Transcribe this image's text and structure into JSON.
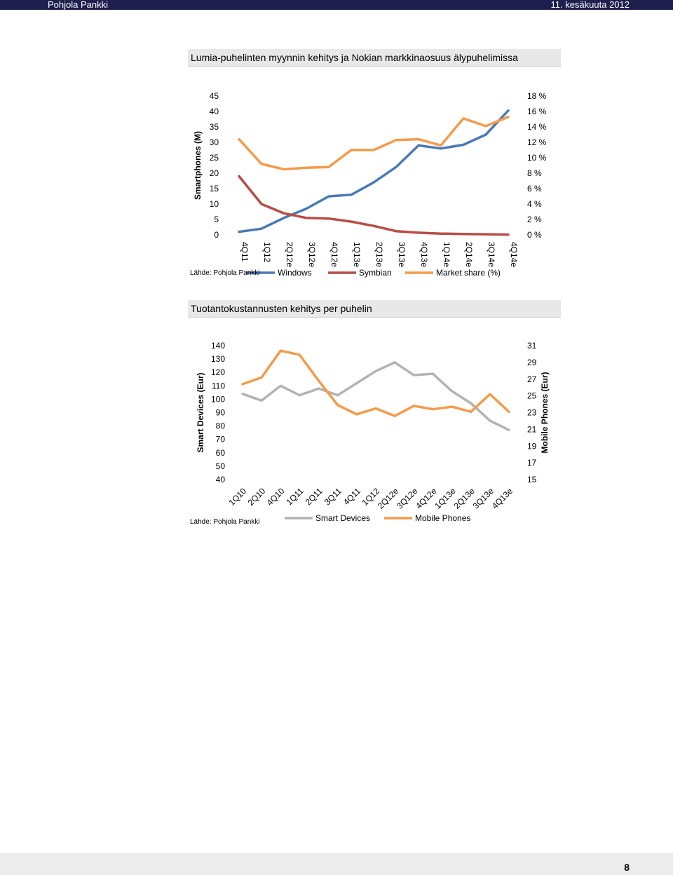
{
  "header": {
    "left": "Pohjola Pankki",
    "right": "11. kesäkuuta 2012"
  },
  "chart1": {
    "title": "Lumia-puhelinten myynnin kehitys ja Nokian markkinaosuus älypuhelimissa",
    "source": "Lähde: Pohjola Pankki"
  },
  "chart2": {
    "title": "Tuotantokustannusten kehitys per puhelin",
    "source": "Lähde: Pohjola Pankki"
  },
  "page_number": "8",
  "colors": {
    "windows": "#4a7ab5",
    "symbian": "#b84c47",
    "market": "#f39c4b",
    "smart": "#b3b3b3",
    "mobile": "#f39c4b"
  },
  "chart_data": [
    {
      "type": "line",
      "title": "Lumia-puhelinten myynnin kehitys ja Nokian markkinaosuus älypuhelimissa",
      "ylabel": "Smartphones (M)",
      "ylabel_right": "",
      "categories": [
        "4Q11",
        "1Q12",
        "2Q12e",
        "3Q12e",
        "4Q12e",
        "1Q13e",
        "2Q13e",
        "3Q13e",
        "4Q13e",
        "1Q14e",
        "2Q14e",
        "3Q14e",
        "4Q14e"
      ],
      "ylim": [
        0,
        45
      ],
      "yticks": [
        "0",
        "5",
        "10",
        "15",
        "20",
        "25",
        "30",
        "35",
        "40",
        "45"
      ],
      "y2lim": [
        0,
        18
      ],
      "y2ticks": [
        "0 %",
        "2 %",
        "4 %",
        "6 %",
        "8 %",
        "10 %",
        "12 %",
        "14 %",
        "16 %",
        "18 %"
      ],
      "series": [
        {
          "name": "Windows",
          "axis": "left",
          "values": [
            1,
            2,
            5.5,
            8.5,
            12.5,
            13,
            17,
            22,
            29,
            28,
            29.2,
            32.5,
            40.3
          ]
        },
        {
          "name": "Symbian",
          "axis": "left",
          "values": [
            19,
            10,
            7,
            5.5,
            5.3,
            4.3,
            2.9,
            1.2,
            0.7,
            0.4,
            0.3,
            0.2,
            0.1
          ]
        },
        {
          "name": "Market share (%)",
          "axis": "right",
          "values": [
            12.4,
            9.2,
            8.5,
            8.7,
            8.8,
            11,
            11,
            12.3,
            12.4,
            11.6,
            15.1,
            14.1,
            15.3
          ]
        }
      ],
      "legend": "bottom"
    },
    {
      "type": "line",
      "title": "Tuotantokustannusten kehitys per puhelin",
      "ylabel": "Smart Devices (Eur)",
      "ylabel_right": "Mobile Phones (Eur)",
      "categories": [
        "1Q10",
        "2Q10",
        "4Q10",
        "1Q11",
        "2Q11",
        "3Q11",
        "4Q11",
        "1Q12",
        "2Q12e",
        "3Q12e",
        "4Q12e",
        "1Q13e",
        "2Q13e",
        "3Q13e",
        "4Q13e"
      ],
      "ylim": [
        40,
        140
      ],
      "yticks": [
        "40",
        "50",
        "60",
        "70",
        "80",
        "90",
        "100",
        "110",
        "120",
        "130",
        "140"
      ],
      "y2lim": [
        15,
        31
      ],
      "y2ticks": [
        "15",
        "17",
        "19",
        "21",
        "23",
        "25",
        "27",
        "29",
        "31"
      ],
      "series": [
        {
          "name": "Smart Devices",
          "axis": "left",
          "values": [
            104,
            99,
            110,
            103,
            108,
            103,
            112,
            121,
            127.5,
            118,
            119,
            106,
            97,
            84,
            77
          ]
        },
        {
          "name": "Mobile Phones",
          "axis": "right",
          "values": [
            26.4,
            27.2,
            30.4,
            29.9,
            26.8,
            23.9,
            22.8,
            23.5,
            22.6,
            23.8,
            23.4,
            23.7,
            23.1,
            25.2,
            23.1
          ]
        }
      ],
      "legend": "bottom"
    }
  ]
}
